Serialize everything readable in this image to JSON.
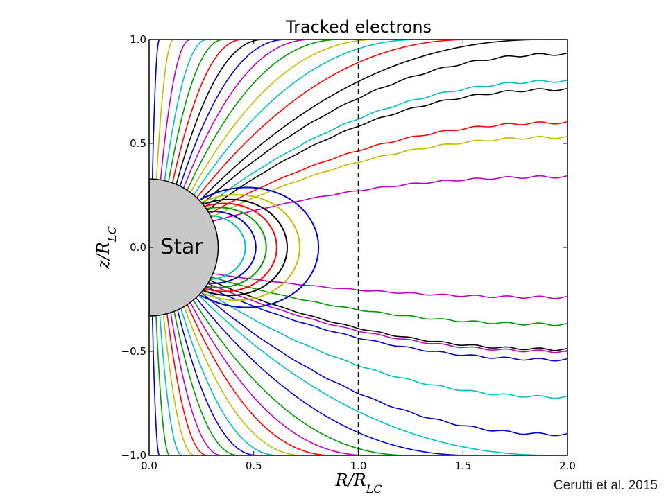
{
  "chart_data": {
    "type": "line",
    "title": "Tracked electrons",
    "xlabel": "R/R_LC",
    "ylabel": "z/R_LC",
    "xlim": [
      0.0,
      2.0
    ],
    "ylim": [
      -1.0,
      1.0
    ],
    "x_ticks": [
      "0.0",
      "0.5",
      "1.0",
      "1.5",
      "2.0"
    ],
    "y_ticks": [
      "−1.0",
      "−0.5",
      "0.0",
      "0.5",
      "1.0"
    ],
    "grid": false,
    "light_cylinder_x": 1.0,
    "star": {
      "label": "Star",
      "radius": 0.33,
      "fill": "#c8c8c8"
    },
    "palette": [
      "#0000cc",
      "#009900",
      "#ff0000",
      "#00bfbf",
      "#bf00bf",
      "#bfbf00",
      "#000000"
    ],
    "open_lines_upper": [
      {
        "end_y": 1.0,
        "end_x": 0.05,
        "color": "#0000cc"
      },
      {
        "end_y": 1.0,
        "end_x": 0.12,
        "color": "#bfbf00"
      },
      {
        "end_y": 1.0,
        "end_x": 0.2,
        "color": "#bf00bf"
      },
      {
        "end_y": 1.0,
        "end_x": 0.28,
        "color": "#00bfbf"
      },
      {
        "end_y": 1.0,
        "end_x": 0.36,
        "color": "#009900"
      },
      {
        "end_y": 1.0,
        "end_x": 0.45,
        "color": "#ff0000"
      },
      {
        "end_y": 1.0,
        "end_x": 0.55,
        "color": "#000000"
      },
      {
        "end_y": 1.0,
        "end_x": 0.66,
        "color": "#0000cc"
      },
      {
        "end_y": 1.0,
        "end_x": 0.78,
        "color": "#bf00bf"
      },
      {
        "end_y": 1.0,
        "end_x": 0.92,
        "color": "#009900"
      },
      {
        "end_y": 1.0,
        "end_x": 1.1,
        "color": "#bfbf00"
      },
      {
        "end_y": 1.0,
        "end_x": 1.3,
        "color": "#00bfbf"
      },
      {
        "end_y": 1.0,
        "end_x": 1.55,
        "color": "#ff0000"
      },
      {
        "end_y": 1.0,
        "end_x": 1.9,
        "color": "#000000"
      },
      {
        "end_y": 0.93,
        "end_x": 2.0,
        "color": "#000000"
      },
      {
        "end_y": 0.8,
        "end_x": 2.0,
        "color": "#00bfbf"
      },
      {
        "end_y": 0.76,
        "end_x": 2.0,
        "color": "#000000"
      },
      {
        "end_y": 0.6,
        "end_x": 2.0,
        "color": "#ff0000"
      },
      {
        "end_y": 0.53,
        "end_x": 2.0,
        "color": "#bfbf00"
      },
      {
        "end_y": 0.34,
        "end_x": 2.0,
        "color": "#bf00bf"
      }
    ],
    "open_lines_lower": [
      {
        "end_y": -1.0,
        "end_x": 0.05,
        "color": "#0000cc"
      },
      {
        "end_y": -1.0,
        "end_x": 0.1,
        "color": "#009900"
      },
      {
        "end_y": -1.0,
        "end_x": 0.16,
        "color": "#00bfbf"
      },
      {
        "end_y": -1.0,
        "end_x": 0.22,
        "color": "#bfbf00"
      },
      {
        "end_y": -1.0,
        "end_x": 0.28,
        "color": "#ff0000"
      },
      {
        "end_y": -1.0,
        "end_x": 0.35,
        "color": "#bf00bf"
      },
      {
        "end_y": -1.0,
        "end_x": 0.43,
        "color": "#009900"
      },
      {
        "end_y": -1.0,
        "end_x": 0.52,
        "color": "#0000cc"
      },
      {
        "end_y": -1.0,
        "end_x": 0.62,
        "color": "#00bfbf"
      },
      {
        "end_y": -1.0,
        "end_x": 0.74,
        "color": "#bfbf00"
      },
      {
        "end_y": -1.0,
        "end_x": 0.88,
        "color": "#ff0000"
      },
      {
        "end_y": -1.0,
        "end_x": 1.05,
        "color": "#bf00bf"
      },
      {
        "end_y": -1.0,
        "end_x": 1.25,
        "color": "#009900"
      },
      {
        "end_y": -1.0,
        "end_x": 1.55,
        "color": "#0000cc"
      },
      {
        "end_y": -1.0,
        "end_x": 1.95,
        "color": "#00bfbf"
      },
      {
        "end_y": -0.9,
        "end_x": 2.0,
        "color": "#0000cc"
      },
      {
        "end_y": -0.72,
        "end_x": 2.0,
        "color": "#00bfbf"
      },
      {
        "end_y": -0.54,
        "end_x": 2.0,
        "color": "#0000cc"
      },
      {
        "end_y": -0.5,
        "end_x": 2.0,
        "color": "#bf00bf"
      },
      {
        "end_y": -0.49,
        "end_x": 2.0,
        "color": "#000000"
      },
      {
        "end_y": -0.37,
        "end_x": 2.0,
        "color": "#009900"
      },
      {
        "end_y": -0.24,
        "end_x": 2.0,
        "color": "#bf00bf"
      }
    ],
    "closed_loops": [
      {
        "extent_x": 0.4,
        "color": "#00bfbf"
      },
      {
        "extent_x": 0.45,
        "color": "#0000cc"
      },
      {
        "extent_x": 0.5,
        "color": "#009900"
      },
      {
        "extent_x": 0.55,
        "color": "#ff0000"
      },
      {
        "extent_x": 0.6,
        "color": "#000000"
      },
      {
        "extent_x": 0.66,
        "color": "#bfbf00"
      },
      {
        "extent_x": 0.75,
        "color": "#0000cc"
      }
    ]
  },
  "credit": "Cerutti et al. 2015"
}
